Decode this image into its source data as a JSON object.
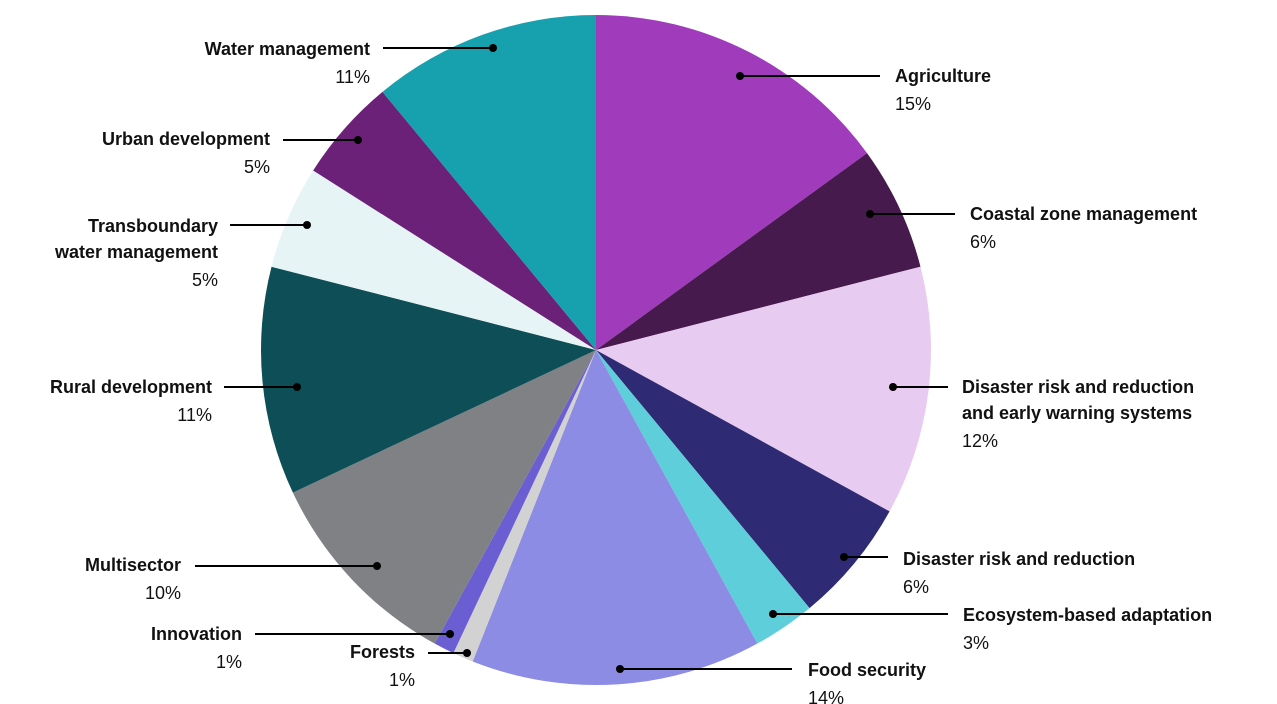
{
  "chart_data": {
    "type": "pie",
    "title": "",
    "unit": "%",
    "slices": [
      {
        "label": [
          "Agriculture"
        ],
        "value": 15,
        "display": "15%",
        "color": "#A03BBC"
      },
      {
        "label": [
          "Coastal zone management"
        ],
        "value": 6,
        "display": "6%",
        "color": "#471A4E"
      },
      {
        "label": [
          "Disaster risk and reduction",
          "and early warning systems"
        ],
        "value": 12,
        "display": "12%",
        "color": "#E8CBF0"
      },
      {
        "label": [
          "Disaster risk and reduction"
        ],
        "value": 6,
        "display": "6%",
        "color": "#2E2A73"
      },
      {
        "label": [
          "Ecosystem-based adaptation"
        ],
        "value": 3,
        "display": "3%",
        "color": "#5ECFDA"
      },
      {
        "label": [
          "Food security"
        ],
        "value": 14,
        "display": "14%",
        "color": "#8C8CE4"
      },
      {
        "label": [
          "Forests"
        ],
        "value": 1,
        "display": "1%",
        "color": "#D2D2D2"
      },
      {
        "label": [
          "Innovation"
        ],
        "value": 1,
        "display": "1%",
        "color": "#6B5ED3"
      },
      {
        "label": [
          "Multisector"
        ],
        "value": 10,
        "display": "10%",
        "color": "#808184"
      },
      {
        "label": [
          "Rural development"
        ],
        "value": 11,
        "display": "11%",
        "color": "#0E4F57"
      },
      {
        "label": [
          "Transboundary",
          "water management"
        ],
        "value": 5,
        "display": "5%",
        "color": "#E6F4F6"
      },
      {
        "label": [
          "Urban development"
        ],
        "value": 5,
        "display": "5%",
        "color": "#6B2177"
      },
      {
        "label": [
          "Water management"
        ],
        "value": 11,
        "display": "11%",
        "color": "#17A0AD"
      }
    ]
  }
}
